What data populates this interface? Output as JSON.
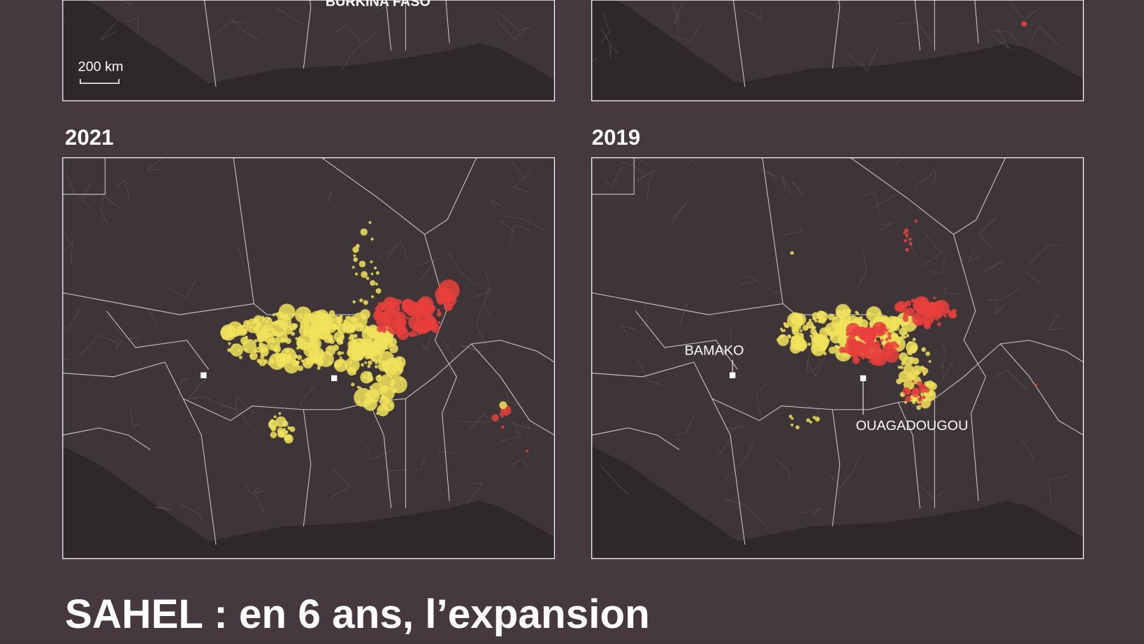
{
  "maps": {
    "top_left": {
      "country_label": "BURKINA FASO",
      "scale_label": "200 km"
    },
    "bottom_left": {
      "year": "2021"
    },
    "bottom_right": {
      "year": "2019",
      "cities": [
        "BAMAKO",
        "OUAGADOUGOU"
      ]
    }
  },
  "title": "SAHEL : en 6 ans, l’expansion"
}
